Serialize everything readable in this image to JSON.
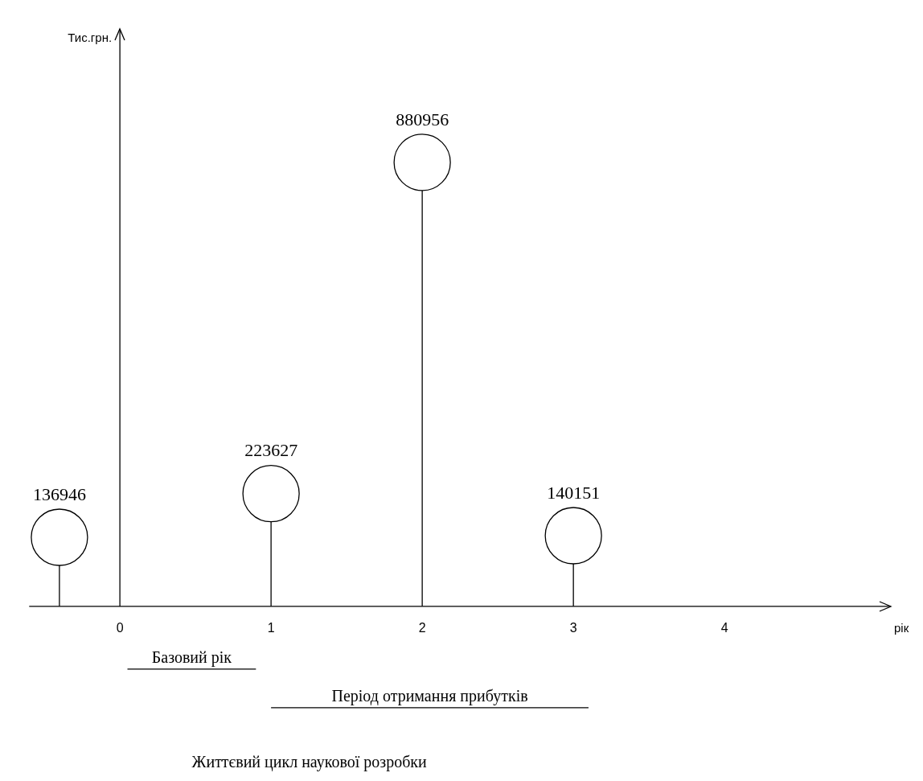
{
  "chart_data": {
    "type": "lollipop",
    "xlabel": "рік",
    "x": [
      -0.4,
      1,
      2,
      3
    ],
    "values": [
      136946,
      223627,
      880956,
      140151
    ],
    "data_labels": true,
    "xlim": [
      -0.6,
      5.1
    ],
    "xticks": [
      0,
      1,
      2,
      3,
      4
    ],
    "color": "#000000",
    "marker": "circle",
    "legend": false,
    "annotations": [
      "Тис.грн.",
      "Базовий рік",
      "Період отримання прибутків",
      "Життєвий цикл наукової розробки"
    ]
  }
}
